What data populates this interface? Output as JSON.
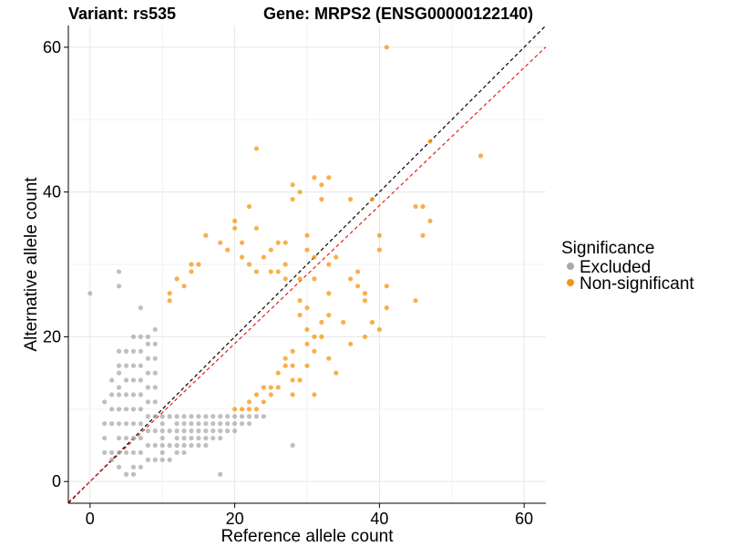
{
  "chart_data": {
    "type": "scatter",
    "title_left": "Variant: rs535",
    "title_right": "Gene: MRPS2 (ENSG00000122140)",
    "xlabel": "Reference allele count",
    "ylabel": "Alternative allele count",
    "xlim": [
      -3,
      63
    ],
    "ylim": [
      -3,
      63
    ],
    "x_ticks": [
      0,
      20,
      40,
      60
    ],
    "y_ticks": [
      0,
      20,
      40,
      60
    ],
    "x_tick_labels": [
      "0",
      "20",
      "40",
      "60"
    ],
    "y_tick_labels": [
      "0",
      "20",
      "40",
      "60"
    ],
    "grid": true,
    "legend": {
      "title": "Significance",
      "position": "right",
      "entries": [
        {
          "label": "Excluded",
          "color": "#aaaaaa"
        },
        {
          "label": "Non-significant",
          "color": "#f5960f"
        }
      ]
    },
    "reference_lines": [
      {
        "name": "identity",
        "slope": 1,
        "intercept": 0,
        "color": "#000000",
        "dash": true
      },
      {
        "name": "fit",
        "slope": 0.953,
        "intercept": 0,
        "color": "#e8201a",
        "dash": true
      }
    ],
    "series": [
      {
        "name": "Excluded",
        "color": "#aaaaaa",
        "points": [
          [
            0,
            26
          ],
          [
            4,
            29
          ],
          [
            4,
            27
          ],
          [
            7,
            24
          ],
          [
            28,
            5
          ],
          [
            18,
            1
          ],
          [
            5,
            1
          ],
          [
            6,
            1
          ],
          [
            4,
            2
          ],
          [
            3,
            3
          ],
          [
            3,
            4
          ],
          [
            2,
            4
          ],
          [
            2,
            6
          ],
          [
            2,
            8
          ],
          [
            2,
            11
          ],
          [
            3,
            10
          ],
          [
            3,
            12
          ],
          [
            3,
            14
          ],
          [
            3,
            8
          ],
          [
            4,
            4
          ],
          [
            4,
            6
          ],
          [
            4,
            8
          ],
          [
            4,
            10
          ],
          [
            4,
            12
          ],
          [
            4,
            13
          ],
          [
            4,
            15
          ],
          [
            4,
            16
          ],
          [
            4,
            18
          ],
          [
            5,
            4
          ],
          [
            5,
            6
          ],
          [
            5,
            8
          ],
          [
            5,
            10
          ],
          [
            5,
            12
          ],
          [
            5,
            14
          ],
          [
            5,
            16
          ],
          [
            5,
            18
          ],
          [
            6,
            2
          ],
          [
            6,
            4
          ],
          [
            6,
            6
          ],
          [
            6,
            8
          ],
          [
            6,
            10
          ],
          [
            6,
            12
          ],
          [
            6,
            14
          ],
          [
            6,
            16
          ],
          [
            6,
            18
          ],
          [
            6,
            20
          ],
          [
            7,
            2
          ],
          [
            7,
            4
          ],
          [
            7,
            6
          ],
          [
            7,
            8
          ],
          [
            7,
            10
          ],
          [
            7,
            12
          ],
          [
            7,
            14
          ],
          [
            7,
            16
          ],
          [
            7,
            18
          ],
          [
            7,
            20
          ],
          [
            8,
            3
          ],
          [
            8,
            5
          ],
          [
            8,
            7
          ],
          [
            8,
            9
          ],
          [
            8,
            11
          ],
          [
            8,
            13
          ],
          [
            8,
            15
          ],
          [
            8,
            17
          ],
          [
            8,
            19
          ],
          [
            8,
            20
          ],
          [
            9,
            3
          ],
          [
            9,
            5
          ],
          [
            9,
            7
          ],
          [
            9,
            9
          ],
          [
            9,
            11
          ],
          [
            9,
            13
          ],
          [
            9,
            15
          ],
          [
            9,
            17
          ],
          [
            9,
            19
          ],
          [
            9,
            21
          ],
          [
            10,
            3
          ],
          [
            10,
            4
          ],
          [
            10,
            5
          ],
          [
            10,
            6
          ],
          [
            10,
            7
          ],
          [
            10,
            8
          ],
          [
            10,
            9
          ],
          [
            11,
            3
          ],
          [
            11,
            5
          ],
          [
            11,
            7
          ],
          [
            11,
            9
          ],
          [
            12,
            4
          ],
          [
            12,
            5
          ],
          [
            12,
            6
          ],
          [
            12,
            7
          ],
          [
            12,
            8
          ],
          [
            12,
            9
          ],
          [
            13,
            4
          ],
          [
            13,
            5
          ],
          [
            13,
            6
          ],
          [
            13,
            7
          ],
          [
            13,
            8
          ],
          [
            13,
            9
          ],
          [
            14,
            5
          ],
          [
            14,
            6
          ],
          [
            14,
            7
          ],
          [
            14,
            8
          ],
          [
            14,
            9
          ],
          [
            15,
            5
          ],
          [
            15,
            6
          ],
          [
            15,
            7
          ],
          [
            15,
            8
          ],
          [
            15,
            9
          ],
          [
            16,
            5
          ],
          [
            16,
            6
          ],
          [
            16,
            7
          ],
          [
            16,
            8
          ],
          [
            16,
            9
          ],
          [
            17,
            6
          ],
          [
            17,
            7
          ],
          [
            17,
            8
          ],
          [
            17,
            9
          ],
          [
            18,
            6
          ],
          [
            18,
            7
          ],
          [
            18,
            8
          ],
          [
            18,
            9
          ],
          [
            19,
            7
          ],
          [
            19,
            8
          ],
          [
            19,
            9
          ],
          [
            20,
            7
          ],
          [
            20,
            8
          ],
          [
            20,
            9
          ],
          [
            21,
            8
          ],
          [
            21,
            9
          ],
          [
            22,
            8
          ],
          [
            22,
            9
          ],
          [
            23,
            9
          ],
          [
            24,
            9
          ]
        ]
      },
      {
        "name": "Non-significant",
        "color": "#f5960f",
        "points": [
          [
            41,
            60
          ],
          [
            23,
            46
          ],
          [
            47,
            47
          ],
          [
            54,
            45
          ],
          [
            31,
            42
          ],
          [
            32,
            41
          ],
          [
            33,
            42
          ],
          [
            28,
            41
          ],
          [
            29,
            40
          ],
          [
            32,
            39
          ],
          [
            28,
            39
          ],
          [
            36,
            39
          ],
          [
            39,
            39
          ],
          [
            22,
            38
          ],
          [
            20,
            36
          ],
          [
            45,
            38
          ],
          [
            46,
            38
          ],
          [
            20,
            35
          ],
          [
            23,
            35
          ],
          [
            47,
            36
          ],
          [
            46,
            34
          ],
          [
            16,
            34
          ],
          [
            21,
            33
          ],
          [
            27,
            33
          ],
          [
            30,
            34
          ],
          [
            26,
            33
          ],
          [
            40,
            34
          ],
          [
            40,
            32
          ],
          [
            30,
            32
          ],
          [
            25,
            32
          ],
          [
            34,
            31
          ],
          [
            31,
            31
          ],
          [
            33,
            30
          ],
          [
            37,
            29
          ],
          [
            36,
            28
          ],
          [
            37,
            27
          ],
          [
            38,
            26
          ],
          [
            38,
            25
          ],
          [
            41,
            27
          ],
          [
            41,
            24
          ],
          [
            45,
            25
          ],
          [
            39,
            22
          ],
          [
            40,
            21
          ],
          [
            38,
            20
          ],
          [
            35,
            22
          ],
          [
            36,
            19
          ],
          [
            33,
            17
          ],
          [
            34,
            15
          ],
          [
            31,
            12
          ],
          [
            28,
            14
          ],
          [
            30,
            16
          ],
          [
            31,
            18
          ],
          [
            32,
            20
          ],
          [
            32,
            22
          ],
          [
            33,
            23
          ],
          [
            33,
            26
          ],
          [
            29,
            28
          ],
          [
            31,
            28
          ],
          [
            29,
            25
          ],
          [
            30,
            24
          ],
          [
            29,
            23
          ],
          [
            30,
            21
          ],
          [
            30,
            19
          ],
          [
            31,
            20
          ],
          [
            12,
            28
          ],
          [
            14,
            30
          ],
          [
            14,
            29
          ],
          [
            15,
            30
          ],
          [
            18,
            33
          ],
          [
            19,
            32
          ],
          [
            21,
            31
          ],
          [
            22,
            30
          ],
          [
            24,
            31
          ],
          [
            23,
            29
          ],
          [
            25,
            29
          ],
          [
            26,
            29
          ],
          [
            27,
            28
          ],
          [
            27,
            30
          ],
          [
            13,
            27
          ],
          [
            11,
            25
          ],
          [
            11,
            26
          ],
          [
            28,
            18
          ],
          [
            27,
            17
          ],
          [
            26,
            15
          ],
          [
            25,
            13
          ],
          [
            24,
            13
          ],
          [
            23,
            12
          ],
          [
            22,
            11
          ],
          [
            22,
            10
          ],
          [
            21,
            10
          ],
          [
            20,
            10
          ],
          [
            23,
            10
          ],
          [
            24,
            11
          ],
          [
            25,
            12
          ],
          [
            26,
            13
          ],
          [
            27,
            16
          ],
          [
            28,
            16
          ],
          [
            28,
            12
          ],
          [
            29,
            14
          ]
        ]
      }
    ]
  }
}
